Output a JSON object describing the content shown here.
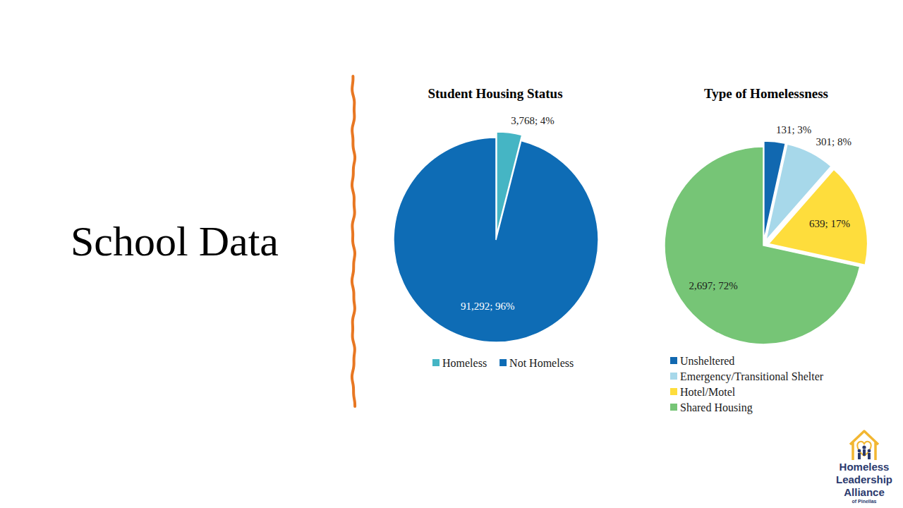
{
  "slide": {
    "title": "School Data",
    "logo": {
      "lines": [
        "Homeless",
        "Leadership",
        "Alliance"
      ],
      "sub": "of Pinellas"
    }
  },
  "chart_data": [
    {
      "type": "pie",
      "title": "Student Housing Status",
      "categories": [
        "Homeless",
        "Not Homeless"
      ],
      "values": [
        3768,
        91292
      ],
      "value_labels": [
        "3,768; 4%",
        "91,292; 96%"
      ],
      "colors": [
        "#45b5c4",
        "#0e6cb5"
      ],
      "data_labels": true,
      "legend": "bottom"
    },
    {
      "type": "pie",
      "title": "Type of Homelessness",
      "categories": [
        "Unsheltered",
        "Emergency/Transitional Shelter",
        "Hotel/Motel",
        "Shared Housing"
      ],
      "values": [
        131,
        301,
        639,
        2697
      ],
      "value_labels": [
        "131; 3%",
        "301; 8%",
        "639; 17%",
        "2,697; 72%"
      ],
      "colors": [
        "#1168b0",
        "#a7d8ea",
        "#fedd3c",
        "#76c576"
      ],
      "data_labels": true,
      "legend": "bottom"
    }
  ]
}
